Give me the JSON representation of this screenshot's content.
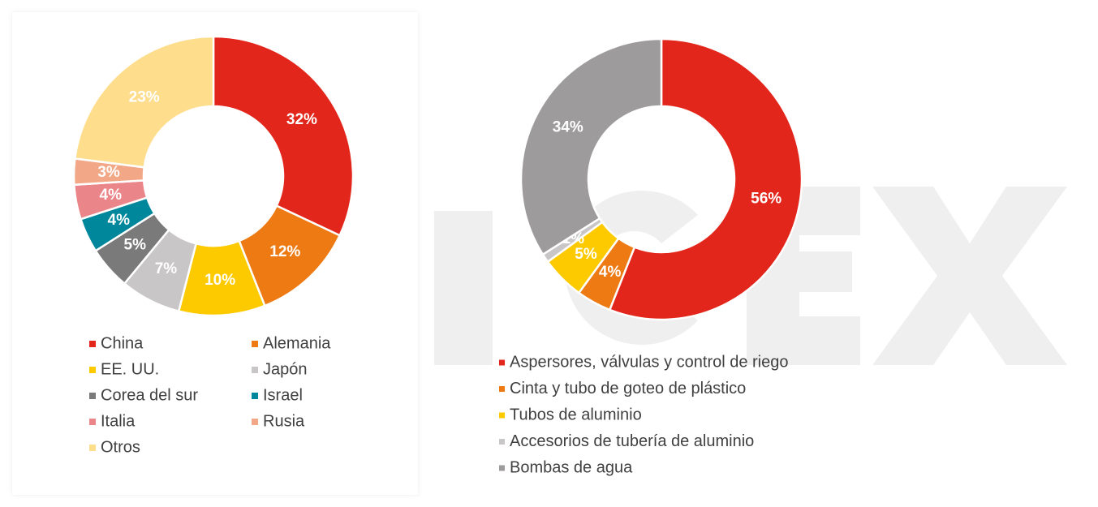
{
  "chart_data": [
    {
      "type": "donut",
      "categories": [
        "China",
        "Alemania",
        "EE. UU.",
        "Japón",
        "Corea del sur",
        "Israel",
        "Italia",
        "Rusia",
        "Otros"
      ],
      "values": [
        32,
        12,
        10,
        7,
        5,
        4,
        4,
        3,
        23
      ],
      "value_labels": [
        "32%",
        "12%",
        "10%",
        "7%",
        "5%",
        "4%",
        "4%",
        "3%",
        "23%"
      ],
      "colors": [
        "#e3261b",
        "#ee7a14",
        "#fdca00",
        "#c8c6c6",
        "#7a7a7a",
        "#00879b",
        "#ea8689",
        "#f2a886",
        "#fedd8c"
      ],
      "legend": "bottom"
    },
    {
      "type": "donut",
      "categories": [
        "Aspersores, válvulas y control de riego",
        "Cinta y tubo de goteo de plástico",
        "Tubos de aluminio",
        "Accesorios de tubería de aluminio",
        "Bombas de agua"
      ],
      "values": [
        56,
        4,
        5,
        1,
        34
      ],
      "value_labels": [
        "56%",
        "4%",
        "5%",
        "1%",
        "34%"
      ],
      "colors": [
        "#e3261b",
        "#ee7a14",
        "#fdca00",
        "#c8c6c6",
        "#9d9b9c"
      ],
      "legend": "bottom"
    }
  ]
}
